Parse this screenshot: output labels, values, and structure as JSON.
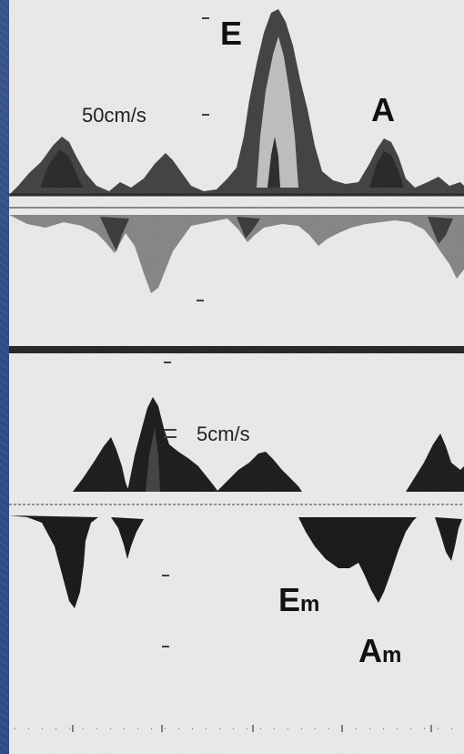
{
  "top_panel": {
    "peak_e": "E",
    "peak_a": "A",
    "scale_label": "50cm/s"
  },
  "bottom_panel": {
    "scale_label": "5cm/s",
    "peak_em": "E",
    "peak_em_sub": "m",
    "peak_am": "A",
    "peak_am_sub": "m"
  }
}
